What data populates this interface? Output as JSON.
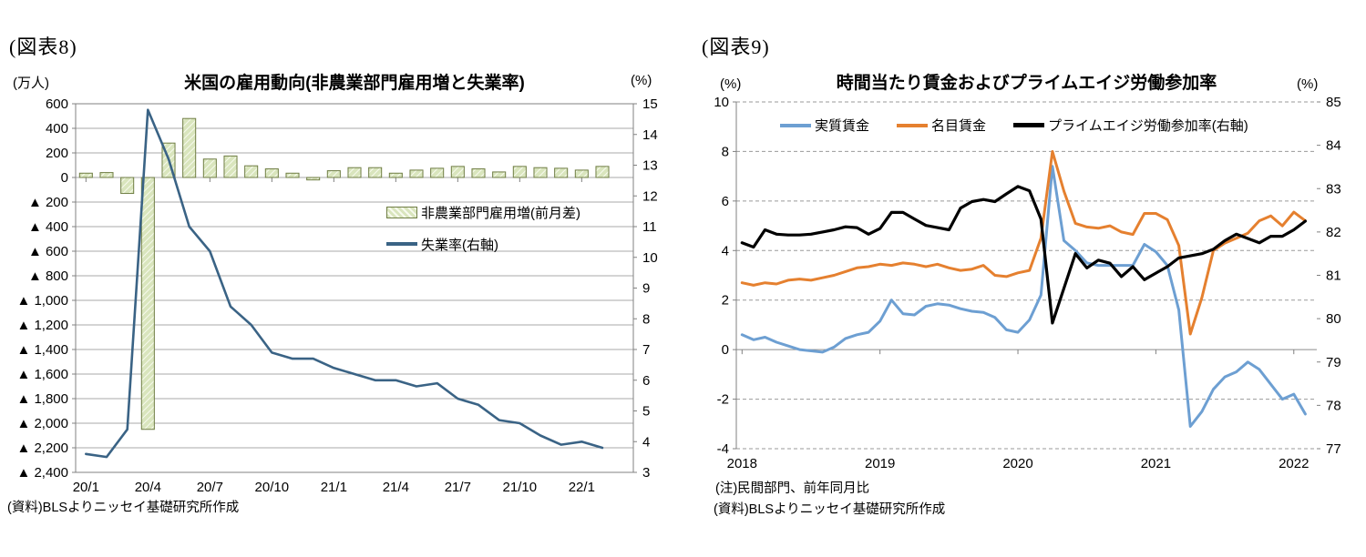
{
  "figure8": {
    "tag": "(図表8)",
    "title": "米国の雇用動向(非農業部門雇用増と失業率)",
    "left_axis_unit": "(万人)",
    "right_axis_unit": "(%)",
    "legend_bar": "非農業部門雇用増(前月差)",
    "legend_line": "失業率(右軸)",
    "source": "(資料)BLSよりニッセイ基礎研究所作成"
  },
  "figure9": {
    "tag": "(図表9)",
    "title": "時間当たり賃金およびプライムエイジ労働参加率",
    "left_axis_unit": "(%)",
    "right_axis_unit": "(%)",
    "legend": [
      "実質賃金",
      "名目賃金",
      "プライムエイジ労働参加率(右軸)"
    ],
    "note": "(注)民間部門、前年同月比",
    "source": "(資料)BLSよりニッセイ基礎研究所作成"
  },
  "chart_data": [
    {
      "id": "figure8",
      "type": "bar",
      "title": "米国の雇用動向(非農業部門雇用増と失業率)",
      "categories": [
        "20/1",
        "20/2",
        "20/3",
        "20/4",
        "20/5",
        "20/6",
        "20/7",
        "20/8",
        "20/9",
        "20/10",
        "20/11",
        "20/12",
        "21/1",
        "21/2",
        "21/3",
        "21/4",
        "21/5",
        "21/6",
        "21/7",
        "21/8",
        "21/9",
        "21/10",
        "21/11",
        "21/12",
        "22/1",
        "22/2"
      ],
      "x_tick_labels": [
        "20/1",
        "20/4",
        "20/7",
        "20/10",
        "21/1",
        "21/4",
        "21/7",
        "21/10",
        "22/1"
      ],
      "x_tick_indices": [
        0,
        3,
        6,
        9,
        12,
        15,
        18,
        21,
        24
      ],
      "left_axis": {
        "unit": "(万人)",
        "min": -2400,
        "max": 600,
        "step": 200,
        "negative_style": "triangle",
        "tick_labels": [
          "600",
          "400",
          "200",
          "0",
          "▲ 200",
          "▲ 400",
          "▲ 600",
          "▲ 800",
          "▲ 1,000",
          "▲ 1,200",
          "▲ 1,400",
          "▲ 1,600",
          "▲ 1,800",
          "▲ 2,000",
          "▲ 2,200",
          "▲ 2,400"
        ]
      },
      "right_axis": {
        "unit": "(%)",
        "min": 3,
        "max": 15,
        "step": 1,
        "tick_labels": [
          "15",
          "14",
          "13",
          "12",
          "11",
          "10",
          "9",
          "8",
          "7",
          "6",
          "5",
          "4",
          "3"
        ]
      },
      "grid": "solid",
      "legend_position": "inside-right",
      "series": [
        {
          "name": "非農業部門雇用増(前月差)",
          "type": "bar",
          "axis": "left",
          "fill": "#d9e5bd",
          "hatch": "#f7faee",
          "border": "#6f7d44",
          "values": [
            35,
            40,
            -130,
            -2050,
            280,
            480,
            150,
            175,
            95,
            70,
            35,
            -20,
            55,
            80,
            80,
            35,
            60,
            75,
            90,
            70,
            45,
            90,
            80,
            75,
            60,
            90
          ]
        },
        {
          "name": "失業率(右軸)",
          "type": "line",
          "axis": "right",
          "color": "#3a6385",
          "values": [
            3.6,
            3.5,
            4.4,
            14.8,
            13.2,
            11.0,
            10.2,
            8.4,
            7.8,
            6.9,
            6.7,
            6.7,
            6.4,
            6.2,
            6.0,
            6.0,
            5.8,
            5.9,
            5.4,
            5.2,
            4.7,
            4.6,
            4.2,
            3.9,
            4.0,
            3.8
          ]
        }
      ]
    },
    {
      "id": "figure9",
      "type": "line",
      "title": "時間当たり賃金およびプライムエイジ労働参加率",
      "categories": [
        "2018/1",
        "2018/2",
        "2018/3",
        "2018/4",
        "2018/5",
        "2018/6",
        "2018/7",
        "2018/8",
        "2018/9",
        "2018/10",
        "2018/11",
        "2018/12",
        "2019/1",
        "2019/2",
        "2019/3",
        "2019/4",
        "2019/5",
        "2019/6",
        "2019/7",
        "2019/8",
        "2019/9",
        "2019/10",
        "2019/11",
        "2019/12",
        "2020/1",
        "2020/2",
        "2020/3",
        "2020/4",
        "2020/5",
        "2020/6",
        "2020/7",
        "2020/8",
        "2020/9",
        "2020/10",
        "2020/11",
        "2020/12",
        "2021/1",
        "2021/2",
        "2021/3",
        "2021/4",
        "2021/5",
        "2021/6",
        "2021/7",
        "2021/8",
        "2021/9",
        "2021/10",
        "2021/11",
        "2021/12",
        "2022/1",
        "2022/2"
      ],
      "x_tick_labels": [
        "2018",
        "2019",
        "2020",
        "2021",
        "2022"
      ],
      "x_tick_indices": [
        0,
        12,
        24,
        36,
        48
      ],
      "left_axis": {
        "unit": "(%)",
        "min": -4,
        "max": 10,
        "step": 2,
        "tick_labels": [
          "10",
          "8",
          "6",
          "4",
          "2",
          "0",
          "-2",
          "-4"
        ]
      },
      "right_axis": {
        "unit": "(%)",
        "min": 77,
        "max": 85,
        "step": 1,
        "tick_labels": [
          "85",
          "84",
          "83",
          "82",
          "81",
          "80",
          "79",
          "78",
          "77"
        ]
      },
      "grid": "dashed",
      "legend_position": "top-inside",
      "series": [
        {
          "name": "実質賃金",
          "type": "line",
          "axis": "left",
          "color": "#6d9fd2",
          "values": [
            0.6,
            0.4,
            0.5,
            0.3,
            0.15,
            0.0,
            -0.05,
            -0.1,
            0.1,
            0.45,
            0.6,
            0.7,
            1.15,
            2.0,
            1.45,
            1.4,
            1.75,
            1.85,
            1.8,
            1.65,
            1.55,
            1.5,
            1.3,
            0.8,
            0.7,
            1.2,
            2.2,
            7.4,
            4.4,
            4.0,
            3.5,
            3.4,
            3.4,
            3.4,
            3.4,
            4.25,
            3.95,
            3.4,
            1.6,
            -3.1,
            -2.5,
            -1.6,
            -1.1,
            -0.9,
            -0.5,
            -0.8,
            -1.4,
            -2.0,
            -1.8,
            -2.6
          ]
        },
        {
          "name": "名目賃金",
          "type": "line",
          "axis": "left",
          "color": "#e5802f",
          "values": [
            2.7,
            2.6,
            2.7,
            2.65,
            2.8,
            2.85,
            2.8,
            2.9,
            3.0,
            3.15,
            3.3,
            3.35,
            3.45,
            3.4,
            3.5,
            3.45,
            3.35,
            3.45,
            3.3,
            3.2,
            3.25,
            3.4,
            3.0,
            2.95,
            3.1,
            3.2,
            4.5,
            8.0,
            6.4,
            5.1,
            4.95,
            4.9,
            5.0,
            4.75,
            4.65,
            5.5,
            5.5,
            5.25,
            4.2,
            0.63,
            2.1,
            4.0,
            4.3,
            4.5,
            4.7,
            5.2,
            5.4,
            5.0,
            5.55,
            5.2
          ]
        },
        {
          "name": "プライムエイジ労働参加率(右軸)",
          "type": "line",
          "axis": "right",
          "color": "#000000",
          "values": [
            81.75,
            81.65,
            82.05,
            81.95,
            81.93,
            81.93,
            81.95,
            82.0,
            82.05,
            82.12,
            82.1,
            81.95,
            82.08,
            82.45,
            82.45,
            82.3,
            82.15,
            82.1,
            82.05,
            82.55,
            82.7,
            82.75,
            82.7,
            82.88,
            83.05,
            82.95,
            82.3,
            79.9,
            80.7,
            81.5,
            81.17,
            81.35,
            81.28,
            80.97,
            81.2,
            80.9,
            81.05,
            81.2,
            81.4,
            81.45,
            81.5,
            81.6,
            81.8,
            81.95,
            81.85,
            81.75,
            81.9,
            81.9,
            82.05,
            82.25
          ]
        }
      ]
    }
  ]
}
